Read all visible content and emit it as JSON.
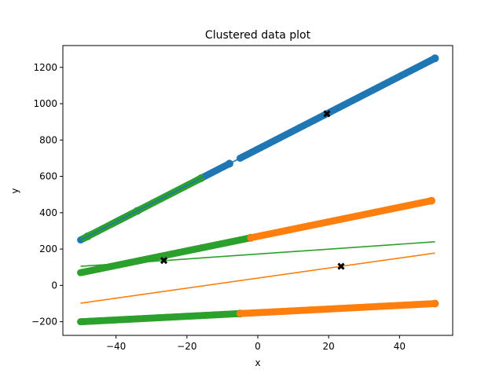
{
  "chart_data": {
    "type": "scatter",
    "title": "Clustered data plot",
    "xlabel": "x",
    "ylabel": "y",
    "xlim": [
      -55,
      55
    ],
    "ylim": [
      -275,
      1320
    ],
    "xticks": [
      -40,
      -20,
      0,
      20,
      40
    ],
    "yticks": [
      -200,
      0,
      200,
      400,
      600,
      800,
      1000,
      1200
    ],
    "grid": false,
    "colors": {
      "blue": "#1f77b4",
      "orange": "#ff7f0e",
      "green": "#2ca02c",
      "centroid": "#000000"
    },
    "point_series": [
      {
        "color": "blue",
        "line": {
          "slope": 10,
          "intercept": 750
        },
        "x_ranges": [
          [
            -50,
            -48
          ],
          [
            -41,
            -34
          ],
          [
            -17,
            -8
          ],
          [
            -5,
            50
          ]
        ]
      },
      {
        "color": "green",
        "line": {
          "slope": 10,
          "intercept": 750
        },
        "x_ranges": [
          [
            -49,
            -16
          ]
        ]
      },
      {
        "color": "green",
        "line": {
          "slope": 4,
          "intercept": 270
        },
        "x_ranges": [
          [
            -50,
            -2
          ]
        ]
      },
      {
        "color": "orange",
        "line": {
          "slope": 4,
          "intercept": 270
        },
        "x_ranges": [
          [
            -2,
            49
          ]
        ]
      },
      {
        "color": "green",
        "line": {
          "slope": 1,
          "intercept": -150
        },
        "x_ranges": [
          [
            -50,
            -5
          ]
        ]
      },
      {
        "color": "orange",
        "line": {
          "slope": 1,
          "intercept": -150
        },
        "x_ranges": [
          [
            -5,
            50
          ]
        ]
      }
    ],
    "fit_lines": [
      {
        "color": "blue",
        "x": [
          -50,
          50
        ],
        "y": [
          250,
          1250
        ]
      },
      {
        "color": "green",
        "x": [
          -50,
          50
        ],
        "y": [
          105,
          240
        ]
      },
      {
        "color": "orange",
        "x": [
          -50,
          50
        ],
        "y": [
          -98,
          178
        ]
      }
    ],
    "centroids": [
      {
        "x": 19.5,
        "y": 945
      },
      {
        "x": -26.5,
        "y": 137
      },
      {
        "x": 23.5,
        "y": 105
      }
    ]
  }
}
